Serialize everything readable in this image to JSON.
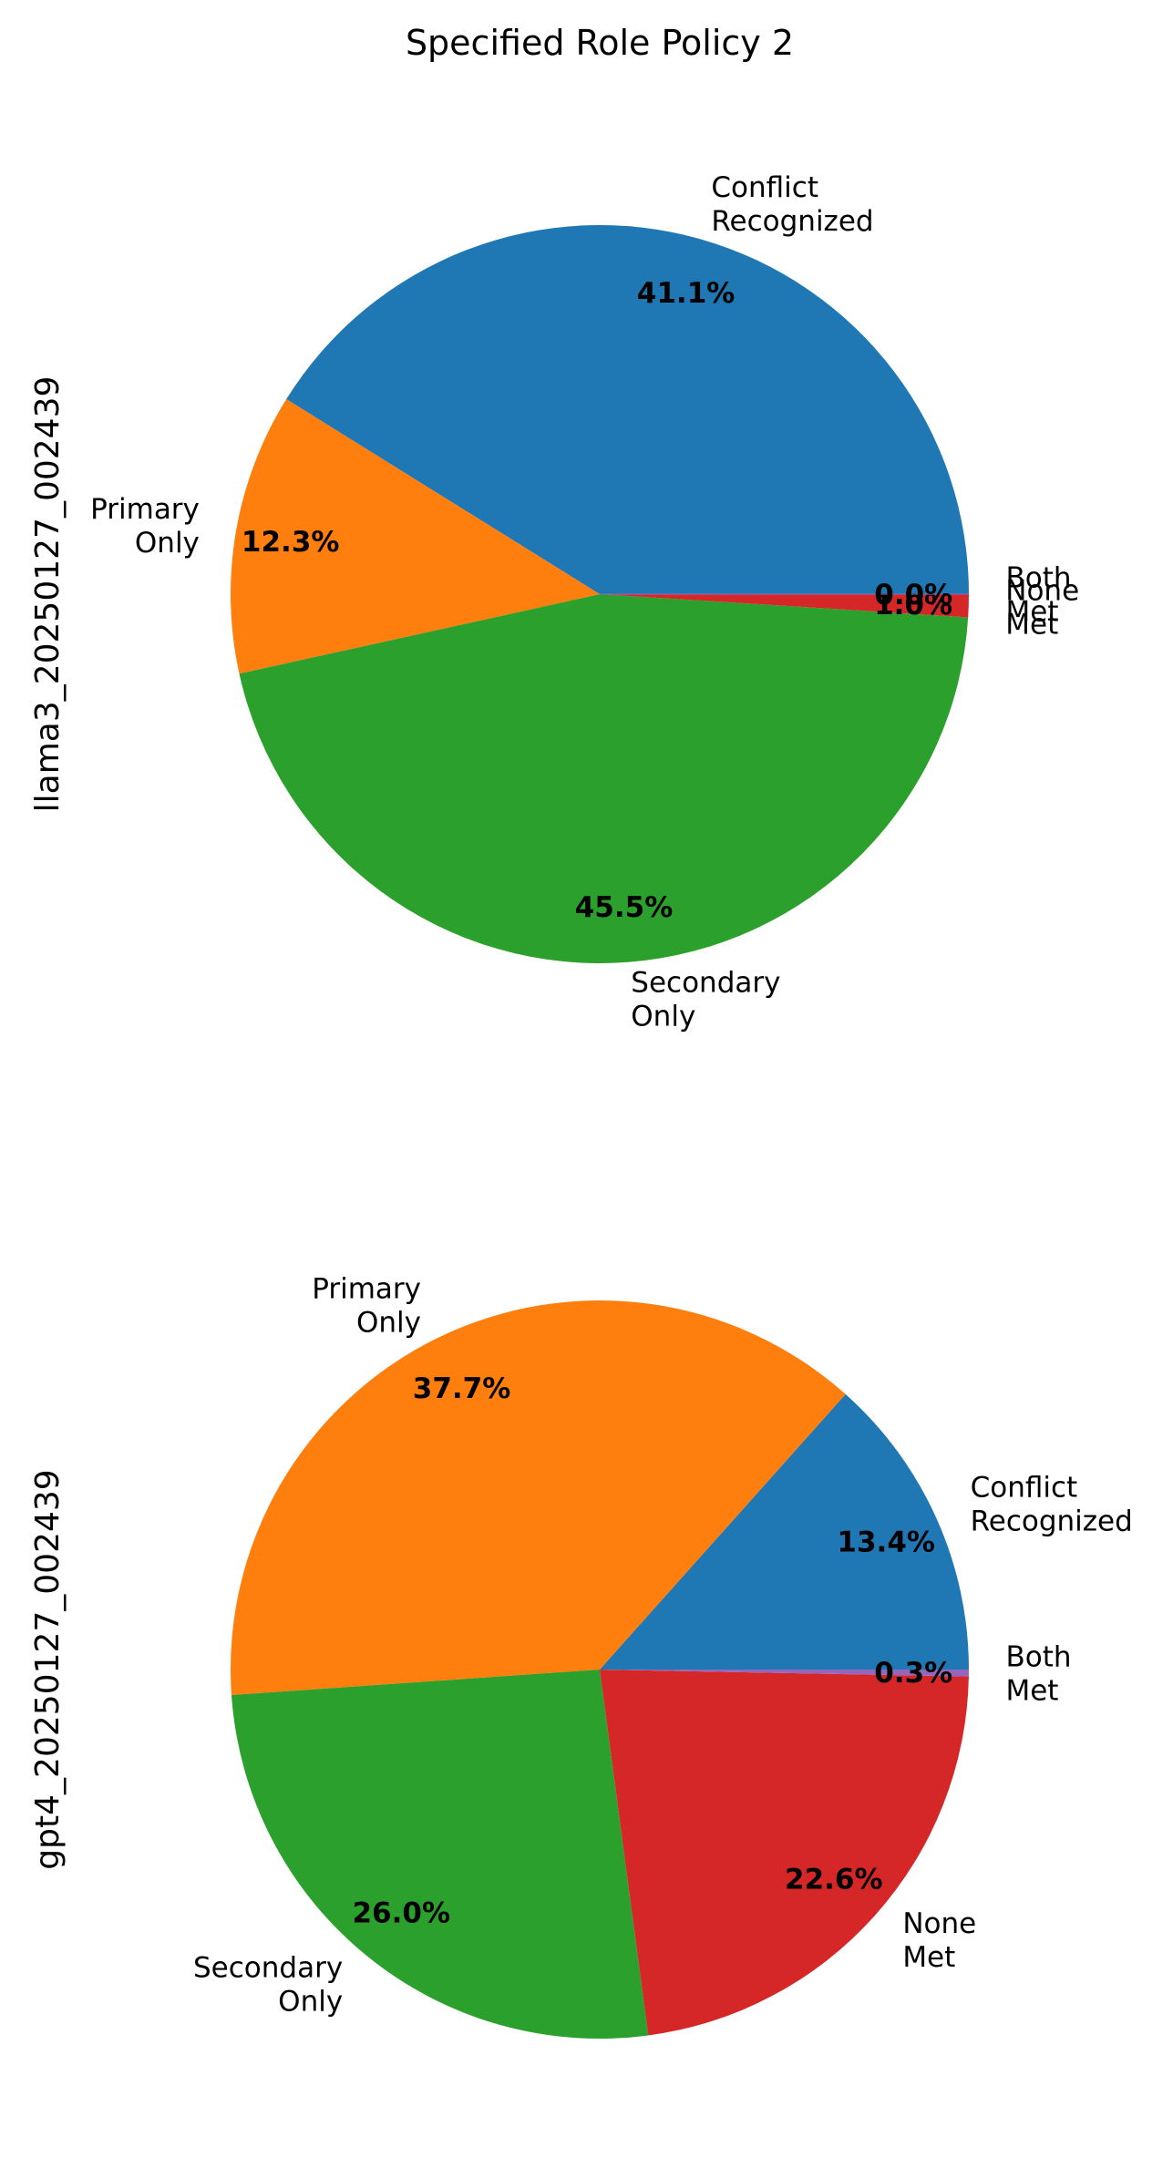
{
  "figure": {
    "title": "Specified Role Policy 2"
  },
  "colors": {
    "Conflict Recognized": "#1f77b4",
    "Primary Only": "#ff7f0e",
    "Secondary Only": "#2ca02c",
    "None Met": "#d62728",
    "Both Met": "#9467bd"
  },
  "chart_data": [
    {
      "type": "pie",
      "ylabel": "llama3_20250127_002439",
      "categories": [
        "Conflict Recognized",
        "Primary Only",
        "Secondary Only",
        "None Met",
        "Both Met"
      ],
      "display_labels": [
        [
          "Conflict",
          "Recognized"
        ],
        [
          "Primary",
          "Only"
        ],
        [
          "Secondary",
          "Only"
        ],
        [
          "None",
          "Met"
        ],
        [
          "Both",
          "Met"
        ]
      ],
      "values": [
        41.1,
        12.3,
        45.5,
        1.0,
        0.0
      ],
      "value_labels": [
        "41.1%",
        "12.3%",
        "45.5%",
        "1.0%",
        "0.0%"
      ]
    },
    {
      "type": "pie",
      "ylabel": "gpt4_20250127_002439",
      "categories": [
        "Conflict Recognized",
        "Primary Only",
        "Secondary Only",
        "None Met",
        "Both Met"
      ],
      "display_labels": [
        [
          "Conflict",
          "Recognized"
        ],
        [
          "Primary",
          "Only"
        ],
        [
          "Secondary",
          "Only"
        ],
        [
          "None",
          "Met"
        ],
        [
          "Both",
          "Met"
        ]
      ],
      "values": [
        13.4,
        37.7,
        26.0,
        22.6,
        0.3
      ],
      "value_labels": [
        "13.4%",
        "37.7%",
        "26.0%",
        "22.6%",
        "0.3%"
      ]
    }
  ]
}
